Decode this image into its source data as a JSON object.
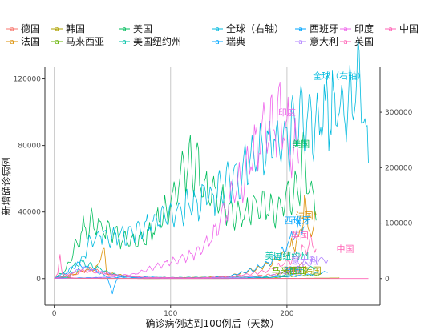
{
  "chart_data": {
    "type": "line",
    "xlabel": "确诊病例达到100例后（天数）",
    "ylabel": "新增确诊病例",
    "xlim": [
      -8,
      280
    ],
    "ylim_left": [
      -16000,
      127000
    ],
    "ylim_right": [
      -48000,
      381000
    ],
    "x_ticks": [
      0,
      100,
      200
    ],
    "y_ticks_left": [
      0,
      40000,
      80000,
      120000
    ],
    "y_ticks_right": [
      0,
      100000,
      200000,
      300000
    ],
    "grid": "vertical-major",
    "legend_position": "top",
    "series": [
      {
        "name": "德国",
        "color": "#F8766D",
        "axis": "left",
        "end_day": 215,
        "points": [
          [
            0,
            100
          ],
          [
            15,
            1500
          ],
          [
            25,
            4500
          ],
          [
            32,
            6200
          ],
          [
            40,
            4200
          ],
          [
            50,
            2200
          ],
          [
            60,
            1200
          ],
          [
            80,
            600
          ],
          [
            110,
            500
          ],
          [
            140,
            800
          ],
          [
            170,
            1500
          ],
          [
            190,
            2500
          ],
          [
            200,
            4500
          ],
          [
            210,
            7000
          ],
          [
            215,
            9000
          ]
        ]
      },
      {
        "name": "法国",
        "color": "#DB8E00",
        "axis": "left",
        "end_day": 225,
        "points": [
          [
            0,
            100
          ],
          [
            15,
            2500
          ],
          [
            25,
            5000
          ],
          [
            35,
            4500
          ],
          [
            43,
            17000
          ],
          [
            45,
            3000
          ],
          [
            55,
            2500
          ],
          [
            70,
            800
          ],
          [
            100,
            500
          ],
          [
            130,
            700
          ],
          [
            150,
            1500
          ],
          [
            170,
            5000
          ],
          [
            185,
            9000
          ],
          [
            195,
            14000
          ],
          [
            205,
            20000
          ],
          [
            212,
            26000
          ],
          [
            215,
            52000
          ],
          [
            218,
            25000
          ],
          [
            225,
            35000
          ]
        ]
      },
      {
        "name": "韩国",
        "color": "#AEA200",
        "axis": "left",
        "end_day": 245,
        "points": [
          [
            0,
            100
          ],
          [
            5,
            600
          ],
          [
            10,
            850
          ],
          [
            15,
            300
          ],
          [
            25,
            100
          ],
          [
            80,
            50
          ],
          [
            150,
            100
          ],
          [
            180,
            250
          ],
          [
            210,
            150
          ],
          [
            230,
            300
          ],
          [
            245,
            400
          ]
        ]
      },
      {
        "name": "马来西亚",
        "color": "#64B200",
        "axis": "left",
        "end_day": 230,
        "points": [
          [
            0,
            100
          ],
          [
            30,
            150
          ],
          [
            80,
            50
          ],
          [
            150,
            50
          ],
          [
            190,
            800
          ],
          [
            205,
            1500
          ],
          [
            215,
            2000
          ],
          [
            230,
            2500
          ]
        ]
      },
      {
        "name": "美国",
        "color": "#00BD5C",
        "axis": "left",
        "end_day": 225,
        "points": [
          [
            0,
            100
          ],
          [
            10,
            5000
          ],
          [
            18,
            20000
          ],
          [
            25,
            30000
          ],
          [
            32,
            33000
          ],
          [
            40,
            30000
          ],
          [
            50,
            27000
          ],
          [
            60,
            23000
          ],
          [
            70,
            22000
          ],
          [
            80,
            25000
          ],
          [
            90,
            35000
          ],
          [
            100,
            45000
          ],
          [
            105,
            55000
          ],
          [
            110,
            65000
          ],
          [
            115,
            70000
          ],
          [
            120,
            68000
          ],
          [
            125,
            62000
          ],
          [
            130,
            55000
          ],
          [
            140,
            48000
          ],
          [
            150,
            42000
          ],
          [
            160,
            38000
          ],
          [
            170,
            42000
          ],
          [
            180,
            45000
          ],
          [
            190,
            40000
          ],
          [
            200,
            48000
          ],
          [
            210,
            58000
          ],
          [
            215,
            75000
          ],
          [
            220,
            52000
          ],
          [
            225,
            45000
          ]
        ]
      },
      {
        "name": "美国纽约州",
        "color": "#00C1A7",
        "axis": "left",
        "end_day": 225,
        "points": [
          [
            0,
            100
          ],
          [
            10,
            2500
          ],
          [
            18,
            8000
          ],
          [
            22,
            10000
          ],
          [
            26,
            9000
          ],
          [
            35,
            7000
          ],
          [
            45,
            4000
          ],
          [
            55,
            2000
          ],
          [
            70,
            800
          ],
          [
            100,
            700
          ],
          [
            140,
            800
          ],
          [
            170,
            900
          ],
          [
            190,
            1500
          ],
          [
            205,
            2500
          ],
          [
            215,
            5000
          ],
          [
            225,
            7000
          ]
        ]
      },
      {
        "name": "全球（右轴）",
        "color": "#00BADE",
        "axis": "right",
        "end_day": 270,
        "points": [
          [
            0,
            800
          ],
          [
            10,
            2000
          ],
          [
            20,
            15000
          ],
          [
            25,
            40000
          ],
          [
            30,
            65000
          ],
          [
            40,
            80000
          ],
          [
            50,
            75000
          ],
          [
            60,
            80000
          ],
          [
            70,
            85000
          ],
          [
            80,
            95000
          ],
          [
            90,
            105000
          ],
          [
            100,
            115000
          ],
          [
            110,
            125000
          ],
          [
            120,
            135000
          ],
          [
            130,
            145000
          ],
          [
            140,
            155000
          ],
          [
            150,
            175000
          ],
          [
            160,
            195000
          ],
          [
            170,
            210000
          ],
          [
            180,
            230000
          ],
          [
            190,
            245000
          ],
          [
            200,
            260000
          ],
          [
            210,
            275000
          ],
          [
            220,
            285000
          ],
          [
            230,
            295000
          ],
          [
            240,
            310000
          ],
          [
            250,
            325000
          ],
          [
            260,
            345000
          ],
          [
            263,
            360000
          ],
          [
            268,
            255000
          ],
          [
            270,
            230000
          ]
        ]
      },
      {
        "name": "瑞典",
        "color": "#00A6FF",
        "axis": "left",
        "end_day": 235,
        "points": [
          [
            0,
            100
          ],
          [
            30,
            600
          ],
          [
            60,
            800
          ],
          [
            80,
            900
          ],
          [
            100,
            500
          ],
          [
            130,
            200
          ],
          [
            160,
            300
          ],
          [
            180,
            600
          ],
          [
            200,
            1200
          ],
          [
            215,
            2000
          ],
          [
            225,
            3000
          ],
          [
            235,
            4000
          ]
        ]
      },
      {
        "name": "西班牙",
        "color": "#00A6FF",
        "axis": "left",
        "end_day": 215,
        "points": [
          [
            0,
            100
          ],
          [
            8,
            3000
          ],
          [
            15,
            6000
          ],
          [
            20,
            8500
          ],
          [
            25,
            7500
          ],
          [
            35,
            5000
          ],
          [
            40,
            3000
          ],
          [
            45,
            1500
          ],
          [
            50,
            -8000
          ],
          [
            55,
            1500
          ],
          [
            70,
            500
          ],
          [
            100,
            300
          ],
          [
            130,
            500
          ],
          [
            150,
            1500
          ],
          [
            170,
            5000
          ],
          [
            185,
            10000
          ],
          [
            195,
            15000
          ],
          [
            200,
            20000
          ],
          [
            205,
            25000
          ],
          [
            210,
            30000
          ],
          [
            215,
            32000
          ]
        ]
      },
      {
        "name": "意大利",
        "color": "#B385FF",
        "axis": "left",
        "end_day": 235,
        "points": [
          [
            0,
            100
          ],
          [
            10,
            2000
          ],
          [
            20,
            5000
          ],
          [
            25,
            6500
          ],
          [
            30,
            5500
          ],
          [
            40,
            4000
          ],
          [
            50,
            2500
          ],
          [
            60,
            1500
          ],
          [
            80,
            500
          ],
          [
            120,
            300
          ],
          [
            160,
            800
          ],
          [
            180,
            1500
          ],
          [
            195,
            3000
          ],
          [
            205,
            5500
          ],
          [
            215,
            8000
          ],
          [
            225,
            11000
          ],
          [
            235,
            12000
          ]
        ]
      },
      {
        "name": "印度",
        "color": "#EF67EB",
        "axis": "left",
        "end_day": 210,
        "points": [
          [
            0,
            100
          ],
          [
            30,
            300
          ],
          [
            50,
            1000
          ],
          [
            70,
            3000
          ],
          [
            90,
            8000
          ],
          [
            110,
            12000
          ],
          [
            120,
            15000
          ],
          [
            130,
            20000
          ],
          [
            140,
            30000
          ],
          [
            150,
            45000
          ],
          [
            160,
            60000
          ],
          [
            170,
            75000
          ],
          [
            180,
            85000
          ],
          [
            185,
            90000
          ],
          [
            190,
            95000
          ],
          [
            195,
            97000
          ],
          [
            200,
            90000
          ],
          [
            205,
            80000
          ],
          [
            210,
            75000
          ]
        ]
      },
      {
        "name": "英国",
        "color": "#FF63B6",
        "axis": "left",
        "end_day": 225,
        "points": [
          [
            0,
            100
          ],
          [
            10,
            1500
          ],
          [
            20,
            4000
          ],
          [
            25,
            5000
          ],
          [
            30,
            4500
          ],
          [
            40,
            3500
          ],
          [
            50,
            2500
          ],
          [
            60,
            1500
          ],
          [
            80,
            700
          ],
          [
            120,
            500
          ],
          [
            150,
            1000
          ],
          [
            170,
            3000
          ],
          [
            185,
            5000
          ],
          [
            195,
            8000
          ],
          [
            205,
            12000
          ],
          [
            215,
            18000
          ],
          [
            220,
            22000
          ],
          [
            225,
            20000
          ]
        ]
      },
      {
        "name": "中国",
        "color": "#FF63B6",
        "axis": "left",
        "end_day": 270,
        "points": [
          [
            0,
            100
          ],
          [
            3,
            2500
          ],
          [
            5,
            15000
          ],
          [
            7,
            3000
          ],
          [
            10,
            2000
          ],
          [
            15,
            500
          ],
          [
            20,
            200
          ],
          [
            40,
            50
          ],
          [
            100,
            30
          ],
          [
            200,
            30
          ],
          [
            270,
            30
          ]
        ]
      }
    ],
    "annotations": [
      {
        "text": "全球（右轴）",
        "color": "#00BADE",
        "x": 245,
        "y": 120000,
        "axis": "left"
      },
      {
        "text": "印度",
        "color": "#EF67EB",
        "x": 200,
        "y": 98000,
        "axis": "left"
      },
      {
        "text": "美国",
        "color": "#00BD5C",
        "x": 212,
        "y": 79000,
        "axis": "left"
      },
      {
        "text": "法国",
        "color": "#DB8E00",
        "x": 215,
        "y": 36000,
        "axis": "left"
      },
      {
        "text": "西班牙",
        "color": "#00A6FF",
        "x": 209,
        "y": 33000,
        "axis": "left"
      },
      {
        "text": "英国",
        "color": "#FF63B6",
        "x": 211,
        "y": 24000,
        "axis": "left"
      },
      {
        "text": "中国",
        "color": "#FF63B6",
        "x": 250,
        "y": 16000,
        "axis": "left"
      },
      {
        "text": "美国纽约州",
        "color": "#00C1A7",
        "x": 200,
        "y": 12000,
        "axis": "left"
      },
      {
        "text": "意大利",
        "color": "#B385FF",
        "x": 215,
        "y": 9000,
        "axis": "left"
      },
      {
        "text": "德国",
        "color": "#F8766D",
        "x": 205,
        "y": 3000,
        "axis": "left"
      },
      {
        "text": "瑞典",
        "color": "#00A6FF",
        "x": 206,
        "y": 3000,
        "axis": "left"
      },
      {
        "text": "马来西亚",
        "color": "#64B200",
        "x": 202,
        "y": 3000,
        "axis": "left"
      },
      {
        "text": "韩国",
        "color": "#AEA200",
        "x": 222,
        "y": 3000,
        "axis": "left"
      }
    ]
  }
}
